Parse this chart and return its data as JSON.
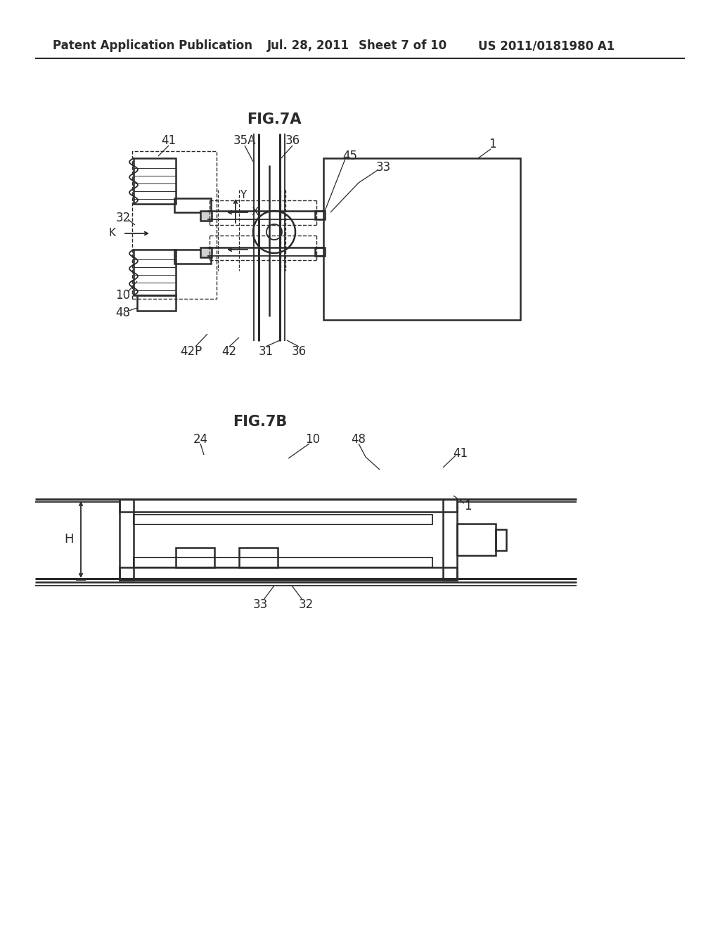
{
  "bg_color": "#ffffff",
  "line_color": "#2a2a2a",
  "header_text": "Patent Application Publication",
  "header_date": "Jul. 28, 2011",
  "header_sheet": "Sheet 7 of 10",
  "header_patent": "US 2011/0181980 A1",
  "fig7a_title": "FIG.7A",
  "fig7b_title": "FIG.7B",
  "lw": 1.3,
  "lw2": 1.8,
  "lw3": 2.2
}
